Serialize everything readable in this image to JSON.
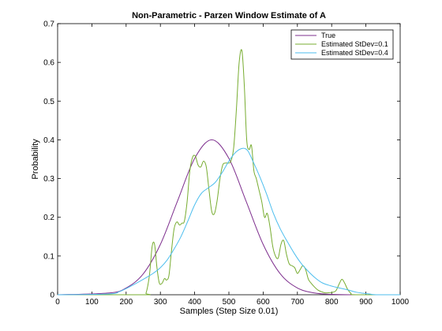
{
  "chart_data": {
    "type": "line",
    "title": "Non-Parametric - Parzen Window Estimate of A",
    "xlabel": "Samples (Step Size 0.01)",
    "ylabel": "Probability",
    "xlim": [
      0,
      1000
    ],
    "ylim": [
      0,
      0.7
    ],
    "xticks": [
      0,
      100,
      200,
      300,
      400,
      500,
      600,
      700,
      800,
      900,
      1000
    ],
    "yticks": [
      0,
      0.1,
      0.2,
      0.3,
      0.4,
      0.5,
      0.6,
      0.7
    ],
    "xtick_labels": [
      "0",
      "100",
      "200",
      "300",
      "400",
      "500",
      "600",
      "700",
      "800",
      "900",
      "1000"
    ],
    "ytick_labels": [
      "0",
      "0.1",
      "0.2",
      "0.3",
      "0.4",
      "0.5",
      "0.6",
      "0.7"
    ],
    "grid": false,
    "legend_position": "top-right",
    "series": [
      {
        "name": "True",
        "color": "#7e2f8e",
        "x": [
          0,
          150,
          200,
          250,
          300,
          350,
          400,
          450,
          500,
          550,
          600,
          650,
          700,
          750,
          800,
          850,
          1000
        ],
        "y": [
          0,
          0.0045,
          0.0175,
          0.054,
          0.13,
          0.242,
          0.352,
          0.4,
          0.352,
          0.242,
          0.13,
          0.054,
          0.0175,
          0.0045,
          0.0009,
          0,
          0
        ]
      },
      {
        "name": "Estimated StDev=0.1",
        "color": "#77ac30",
        "x": [
          0,
          250,
          258,
          268,
          276,
          283,
          290,
          297,
          305,
          312,
          318,
          325,
          332,
          340,
          348,
          356,
          363,
          370,
          378,
          386,
          394,
          402,
          410,
          418,
          426,
          434,
          442,
          450,
          458,
          466,
          474,
          482,
          490,
          498,
          506,
          514,
          522,
          530,
          538,
          545,
          552,
          559,
          566,
          573,
          580,
          588,
          596,
          604,
          612,
          620,
          628,
          636,
          644,
          652,
          660,
          668,
          676,
          684,
          692,
          700,
          708,
          716,
          724,
          732,
          740,
          750,
          760,
          770,
          780,
          790,
          800,
          812,
          822,
          830,
          838,
          846,
          856,
          870,
          1000
        ],
        "y": [
          0,
          0,
          0.004,
          0.05,
          0.125,
          0.13,
          0.07,
          0.03,
          0.03,
          0.042,
          0.038,
          0.05,
          0.11,
          0.17,
          0.188,
          0.18,
          0.185,
          0.19,
          0.24,
          0.32,
          0.355,
          0.358,
          0.335,
          0.33,
          0.345,
          0.33,
          0.27,
          0.215,
          0.21,
          0.245,
          0.3,
          0.335,
          0.34,
          0.34,
          0.345,
          0.38,
          0.48,
          0.6,
          0.63,
          0.54,
          0.4,
          0.375,
          0.385,
          0.32,
          0.3,
          0.27,
          0.24,
          0.2,
          0.21,
          0.175,
          0.125,
          0.1,
          0.095,
          0.13,
          0.14,
          0.105,
          0.08,
          0.075,
          0.07,
          0.055,
          0.065,
          0.075,
          0.065,
          0.04,
          0.03,
          0.02,
          0.012,
          0.008,
          0.005,
          0.005,
          0.006,
          0.01,
          0.028,
          0.04,
          0.03,
          0.015,
          0.004,
          0,
          0
        ]
      },
      {
        "name": "Estimated StDev=0.4",
        "color": "#4dbeee",
        "x": [
          0,
          150,
          180,
          200,
          230,
          260,
          280,
          300,
          320,
          340,
          360,
          380,
          400,
          420,
          440,
          460,
          480,
          500,
          520,
          540,
          555,
          570,
          590,
          610,
          630,
          650,
          670,
          690,
          710,
          730,
          750,
          770,
          790,
          810,
          830,
          850,
          870,
          890,
          910,
          930,
          1000
        ],
        "y": [
          0,
          0.002,
          0.008,
          0.016,
          0.03,
          0.045,
          0.056,
          0.07,
          0.09,
          0.118,
          0.15,
          0.19,
          0.232,
          0.262,
          0.276,
          0.29,
          0.315,
          0.345,
          0.368,
          0.378,
          0.372,
          0.345,
          0.305,
          0.26,
          0.21,
          0.17,
          0.138,
          0.108,
          0.082,
          0.062,
          0.045,
          0.032,
          0.025,
          0.02,
          0.016,
          0.012,
          0.007,
          0.004,
          0.002,
          0,
          0
        ]
      }
    ]
  }
}
